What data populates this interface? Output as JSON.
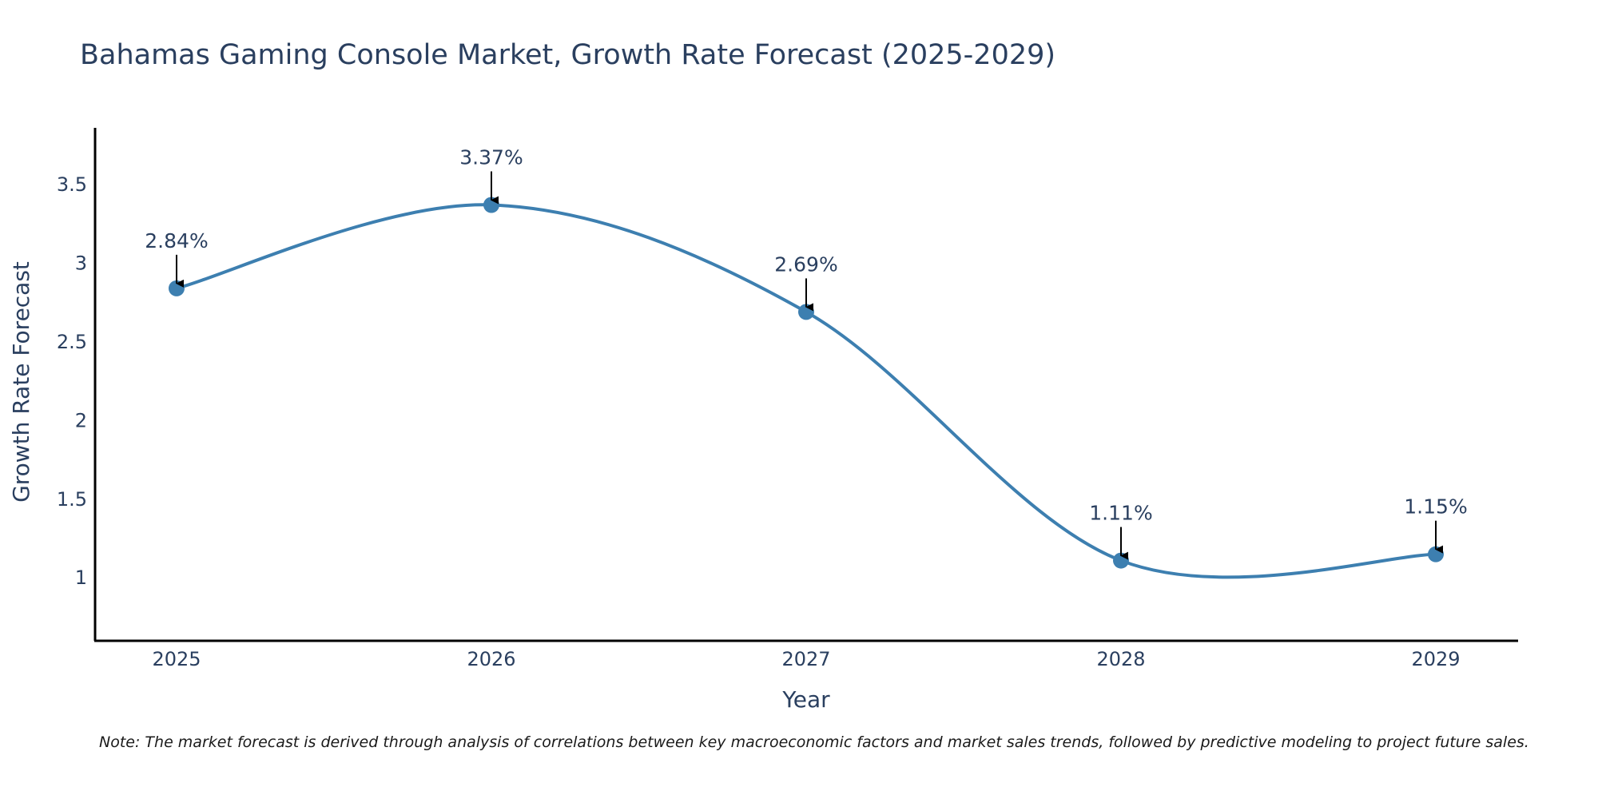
{
  "chart_data": {
    "type": "line",
    "title": "Bahamas Gaming Console Market, Growth Rate Forecast (2025-2029)",
    "xlabel": "Year",
    "ylabel": "Growth Rate Forecast",
    "categories": [
      "2025",
      "2026",
      "2027",
      "2028",
      "2029"
    ],
    "series": [
      {
        "name": "Growth Rate Forecast",
        "values": [
          2.84,
          3.37,
          2.69,
          1.11,
          1.15
        ],
        "labels": [
          "2.84%",
          "3.37%",
          "2.69%",
          "1.11%",
          "1.15%"
        ],
        "color": "#3d7fb0"
      }
    ],
    "ylim": [
      0.6,
      3.86
    ],
    "yticks": [
      1,
      1.5,
      2,
      2.5,
      3,
      3.5
    ],
    "ytick_labels": [
      "1",
      "1.5",
      "2",
      "2.5",
      "3",
      "3.5"
    ],
    "grid": false,
    "smooth": true
  },
  "note": "Note: The market forecast is derived through analysis of correlations between key macroeconomic factors and market sales trends, followed by predictive modeling to project future sales."
}
